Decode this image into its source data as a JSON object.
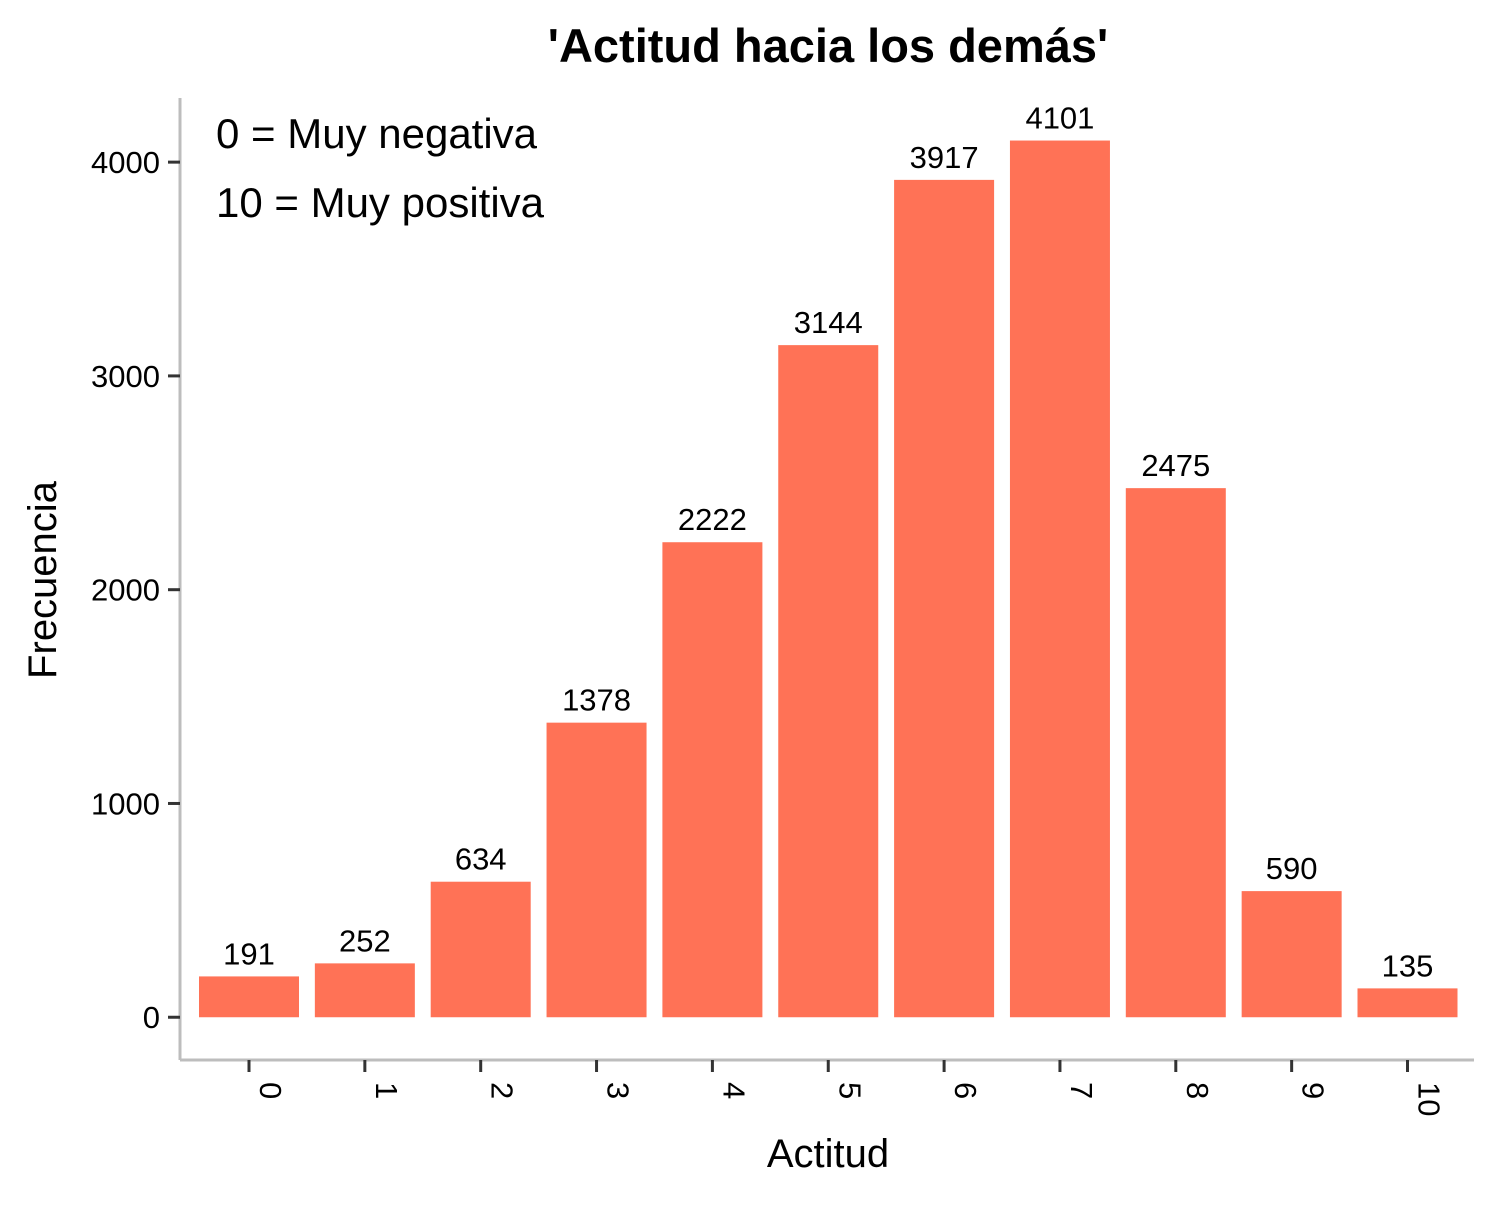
{
  "chart_data": {
    "type": "bar",
    "title": "'Actitud hacia los demás'",
    "xlabel": "Actitud",
    "ylabel": "Frecuencia",
    "categories": [
      "0",
      "1",
      "2",
      "3",
      "4",
      "5",
      "6",
      "7",
      "8",
      "9",
      "10"
    ],
    "values": [
      191,
      252,
      634,
      1378,
      2222,
      3144,
      3917,
      4101,
      2475,
      590,
      135
    ],
    "yticks": [
      0,
      1000,
      2000,
      3000,
      4000
    ],
    "ylim": [
      -200,
      4300
    ],
    "annotations": [
      "0 = Muy negativa",
      "10 = Muy positiva"
    ],
    "grid": false,
    "legend": "none",
    "bar_color": "#FF7256",
    "axis_color": "#BDBDBD"
  }
}
